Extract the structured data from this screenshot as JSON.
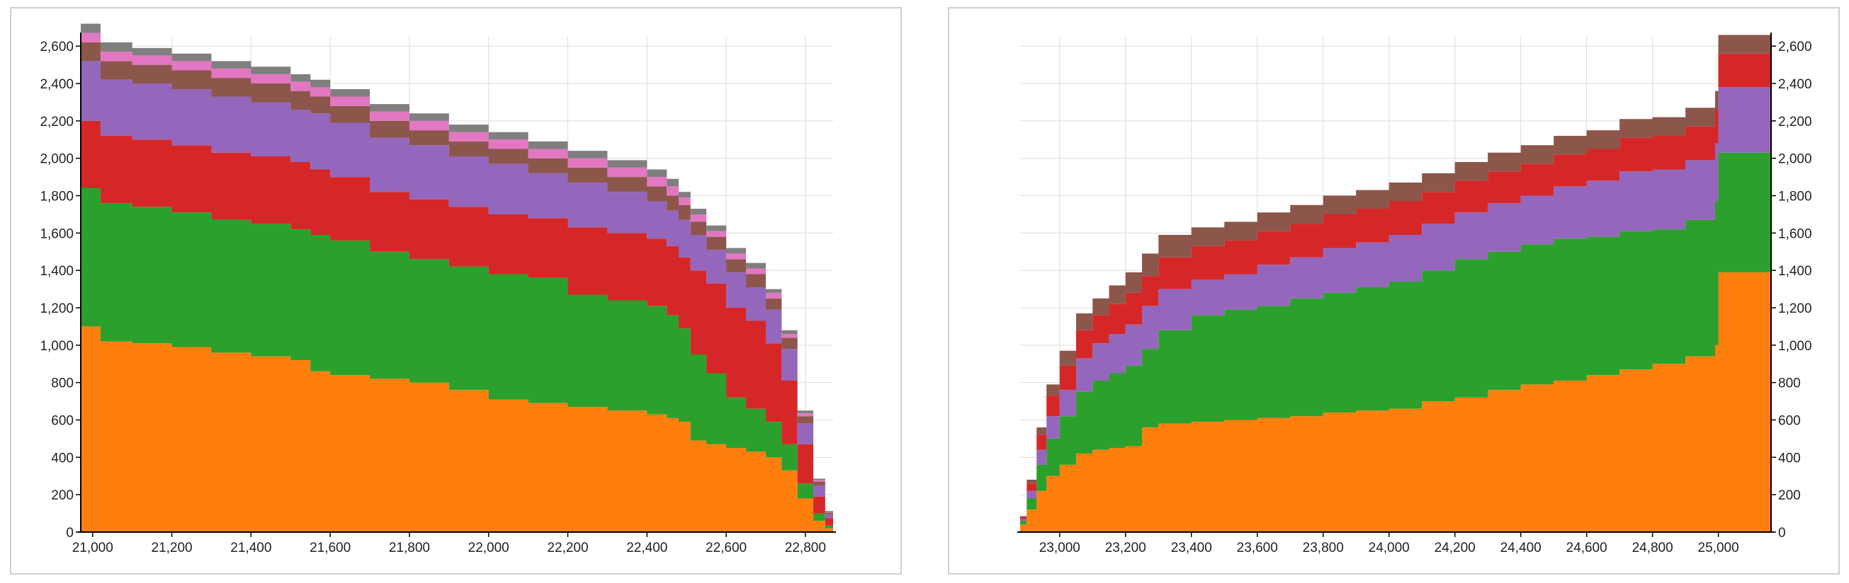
{
  "colors": {
    "orange": "#ff7f0e",
    "green": "#2ca02c",
    "red": "#d62728",
    "purple": "#9467bd",
    "brown": "#8c564b",
    "pink": "#e377c2",
    "gray": "#7f7f7f",
    "grid": "#dcdcdc",
    "axis": "#000000",
    "panel_border": "#cfcfcf"
  },
  "chart_data": [
    {
      "type": "area",
      "stacked": true,
      "step": true,
      "title": "",
      "xlabel": "",
      "ylabel": "",
      "xlim": [
        20970,
        22870
      ],
      "ylim": [
        0,
        2650
      ],
      "x_ticks": [
        21000,
        21200,
        21400,
        21600,
        21800,
        22000,
        22200,
        22400,
        22600,
        22800
      ],
      "y_ticks": [
        0,
        200,
        400,
        600,
        800,
        1000,
        1200,
        1400,
        1600,
        1800,
        2000,
        2200,
        2400,
        2600
      ],
      "grid": true,
      "legend": "none",
      "y_axis_side": "left",
      "x": [
        20970,
        21020,
        21100,
        21200,
        21300,
        21400,
        21500,
        21550,
        21600,
        21700,
        21800,
        21900,
        22000,
        22100,
        22200,
        22300,
        22400,
        22450,
        22480,
        22510,
        22550,
        22600,
        22650,
        22700,
        22740,
        22780,
        22820,
        22850,
        22870
      ],
      "series": [
        {
          "color": "orange",
          "values": [
            1100,
            1020,
            1010,
            990,
            960,
            940,
            920,
            860,
            840,
            820,
            800,
            760,
            710,
            690,
            670,
            650,
            630,
            610,
            590,
            490,
            470,
            450,
            430,
            400,
            330,
            180,
            60,
            20,
            8
          ]
        },
        {
          "color": "green",
          "values": [
            740,
            740,
            730,
            720,
            710,
            710,
            700,
            730,
            720,
            680,
            660,
            660,
            670,
            670,
            600,
            590,
            580,
            550,
            500,
            460,
            380,
            270,
            230,
            190,
            140,
            80,
            40,
            15,
            6
          ]
        },
        {
          "color": "red",
          "values": [
            360,
            360,
            360,
            360,
            360,
            360,
            360,
            350,
            340,
            320,
            320,
            320,
            320,
            320,
            360,
            360,
            360,
            370,
            380,
            450,
            480,
            480,
            470,
            420,
            340,
            210,
            90,
            40,
            12
          ]
        },
        {
          "color": "purple",
          "values": [
            320,
            300,
            300,
            300,
            300,
            290,
            280,
            300,
            290,
            290,
            290,
            270,
            270,
            240,
            240,
            220,
            200,
            190,
            200,
            190,
            180,
            190,
            180,
            180,
            170,
            110,
            60,
            20,
            6
          ]
        },
        {
          "color": "brown",
          "values": [
            100,
            100,
            100,
            100,
            100,
            100,
            100,
            90,
            90,
            90,
            80,
            80,
            80,
            80,
            80,
            80,
            80,
            80,
            80,
            70,
            70,
            70,
            70,
            60,
            60,
            40,
            20,
            10,
            4
          ]
        },
        {
          "color": "pink",
          "values": [
            50,
            50,
            50,
            50,
            50,
            50,
            50,
            50,
            50,
            50,
            50,
            50,
            50,
            50,
            50,
            50,
            50,
            50,
            40,
            40,
            30,
            30,
            30,
            30,
            20,
            15,
            8,
            4,
            2
          ]
        },
        {
          "color": "gray",
          "values": [
            50,
            50,
            40,
            40,
            40,
            40,
            40,
            40,
            40,
            40,
            40,
            40,
            40,
            40,
            40,
            40,
            40,
            40,
            30,
            30,
            30,
            30,
            30,
            20,
            20,
            15,
            8,
            4,
            2
          ]
        }
      ]
    },
    {
      "type": "area",
      "stacked": true,
      "step": true,
      "title": "",
      "xlabel": "",
      "ylabel": "",
      "xlim": [
        22880,
        25160
      ],
      "ylim": [
        0,
        2650
      ],
      "x_ticks": [
        23000,
        23200,
        23400,
        23600,
        23800,
        24000,
        24200,
        24400,
        24600,
        24800,
        25000
      ],
      "y_ticks": [
        0,
        200,
        400,
        600,
        800,
        1000,
        1200,
        1400,
        1600,
        1800,
        2000,
        2200,
        2400,
        2600
      ],
      "grid": true,
      "legend": "none",
      "y_axis_side": "right",
      "x": [
        22880,
        22900,
        22930,
        22960,
        23000,
        23050,
        23100,
        23150,
        23200,
        23250,
        23300,
        23400,
        23500,
        23600,
        23700,
        23800,
        23900,
        24000,
        24100,
        24200,
        24300,
        24400,
        24500,
        24600,
        24700,
        24800,
        24900,
        24990,
        25000,
        25160
      ],
      "series": [
        {
          "color": "orange",
          "values": [
            40,
            120,
            220,
            300,
            360,
            420,
            440,
            450,
            460,
            560,
            580,
            590,
            600,
            610,
            620,
            640,
            650,
            660,
            700,
            720,
            760,
            790,
            810,
            840,
            870,
            900,
            940,
            1000,
            1390,
            1410
          ]
        },
        {
          "color": "green",
          "values": [
            20,
            60,
            140,
            200,
            260,
            330,
            370,
            400,
            430,
            420,
            500,
            570,
            590,
            600,
            630,
            640,
            660,
            680,
            700,
            740,
            740,
            750,
            760,
            740,
            740,
            720,
            730,
            770,
            640,
            640
          ]
        },
        {
          "color": "purple",
          "values": [
            10,
            40,
            80,
            120,
            140,
            180,
            200,
            210,
            220,
            230,
            220,
            190,
            190,
            220,
            220,
            240,
            240,
            250,
            250,
            250,
            260,
            260,
            280,
            300,
            320,
            320,
            320,
            310,
            350,
            360
          ]
        },
        {
          "color": "red",
          "values": [
            10,
            40,
            80,
            110,
            130,
            150,
            150,
            160,
            170,
            160,
            170,
            180,
            180,
            180,
            180,
            180,
            180,
            180,
            170,
            170,
            170,
            170,
            170,
            170,
            180,
            180,
            180,
            180,
            180,
            180
          ]
        },
        {
          "color": "brown",
          "values": [
            5,
            20,
            40,
            60,
            80,
            90,
            90,
            100,
            110,
            120,
            120,
            100,
            100,
            100,
            100,
            100,
            100,
            100,
            100,
            100,
            100,
            100,
            100,
            100,
            100,
            100,
            100,
            100,
            100,
            100
          ]
        }
      ]
    }
  ]
}
